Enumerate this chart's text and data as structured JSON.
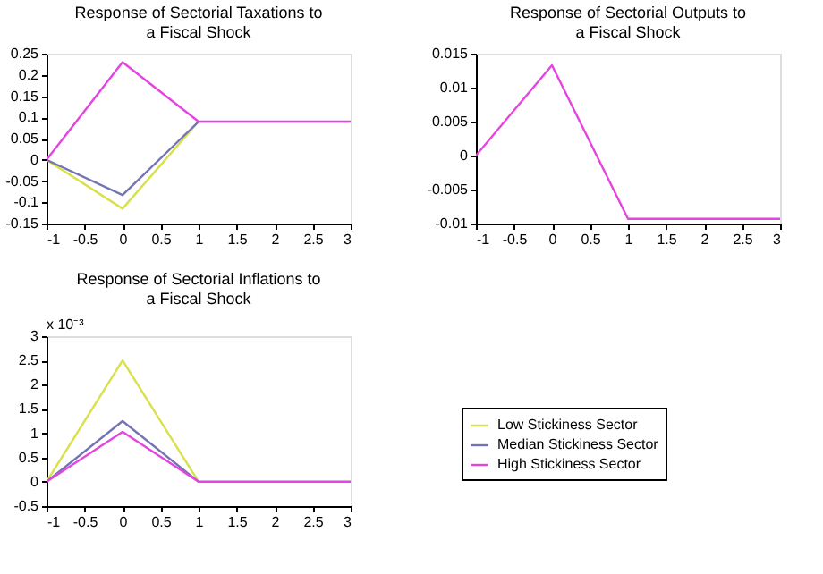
{
  "chart_data": [
    {
      "type": "line",
      "title": "Response of Sectorial Taxations to a Fiscal Shock",
      "x": [
        -1,
        0,
        1,
        2,
        3
      ],
      "xlim": [
        -1,
        3
      ],
      "xticks": [
        -1,
        -0.5,
        0,
        0.5,
        1,
        1.5,
        2,
        2.5,
        3
      ],
      "ylim": [
        -0.15,
        0.25
      ],
      "yticks": [
        -0.15,
        -0.1,
        -0.05,
        0,
        0.05,
        0.1,
        0.15,
        0.2,
        0.25
      ],
      "grid": false,
      "legend": false,
      "marker": "none",
      "line_style": "solid",
      "series": [
        {
          "color": "#d8e04a",
          "values": [
            0,
            -0.115,
            0.09,
            null,
            null
          ]
        },
        {
          "color": "#7474b4",
          "values": [
            0,
            -0.083,
            0.09,
            null,
            null
          ]
        },
        {
          "color": "#e444e0",
          "values": [
            0,
            0.23,
            0.09,
            0.09,
            0.09
          ]
        }
      ]
    },
    {
      "type": "line",
      "title": "Response of Sectorial Outputs to a Fiscal Shock",
      "x": [
        -1,
        0,
        1,
        2,
        3
      ],
      "xlim": [
        -1,
        3
      ],
      "xticks": [
        -1,
        -0.5,
        0,
        0.5,
        1,
        1.5,
        2,
        2.5,
        3
      ],
      "ylim": [
        -0.01,
        0.015
      ],
      "yticks": [
        -0.01,
        -0.005,
        0,
        0.005,
        0.01,
        0.015
      ],
      "grid": false,
      "legend": false,
      "marker": "none",
      "line_style": "solid",
      "series": [
        {
          "color": "#e444e0",
          "values": [
            0,
            0.0133,
            -0.0093,
            -0.0093,
            -0.0093
          ]
        }
      ]
    },
    {
      "type": "line",
      "title": "Response of Sectorial Inflations to a Fiscal Shock",
      "annotations": [
        "x 10⁻³"
      ],
      "x": [
        -1,
        0,
        1,
        2,
        3
      ],
      "xlim": [
        -1,
        3
      ],
      "xticks": [
        -1,
        -0.5,
        0,
        0.5,
        1,
        1.5,
        2,
        2.5,
        3
      ],
      "ylim": [
        -0.5,
        3
      ],
      "yticks": [
        -0.5,
        0,
        0.5,
        1,
        1.5,
        2,
        2.5,
        3
      ],
      "grid": false,
      "legend": "right",
      "marker": "none",
      "line_style": "solid",
      "series": [
        {
          "name": "Low Stickiness Sector",
          "color": "#d8e04a",
          "values": [
            0,
            2.5,
            0,
            0,
            0
          ]
        },
        {
          "name": "Median Stickiness Sector",
          "color": "#7474b4",
          "values": [
            0,
            1.25,
            0,
            0,
            0
          ]
        },
        {
          "name": "High Stickiness Sector",
          "color": "#e444e0",
          "values": [
            0,
            1.03,
            0,
            0,
            0
          ]
        }
      ]
    }
  ]
}
